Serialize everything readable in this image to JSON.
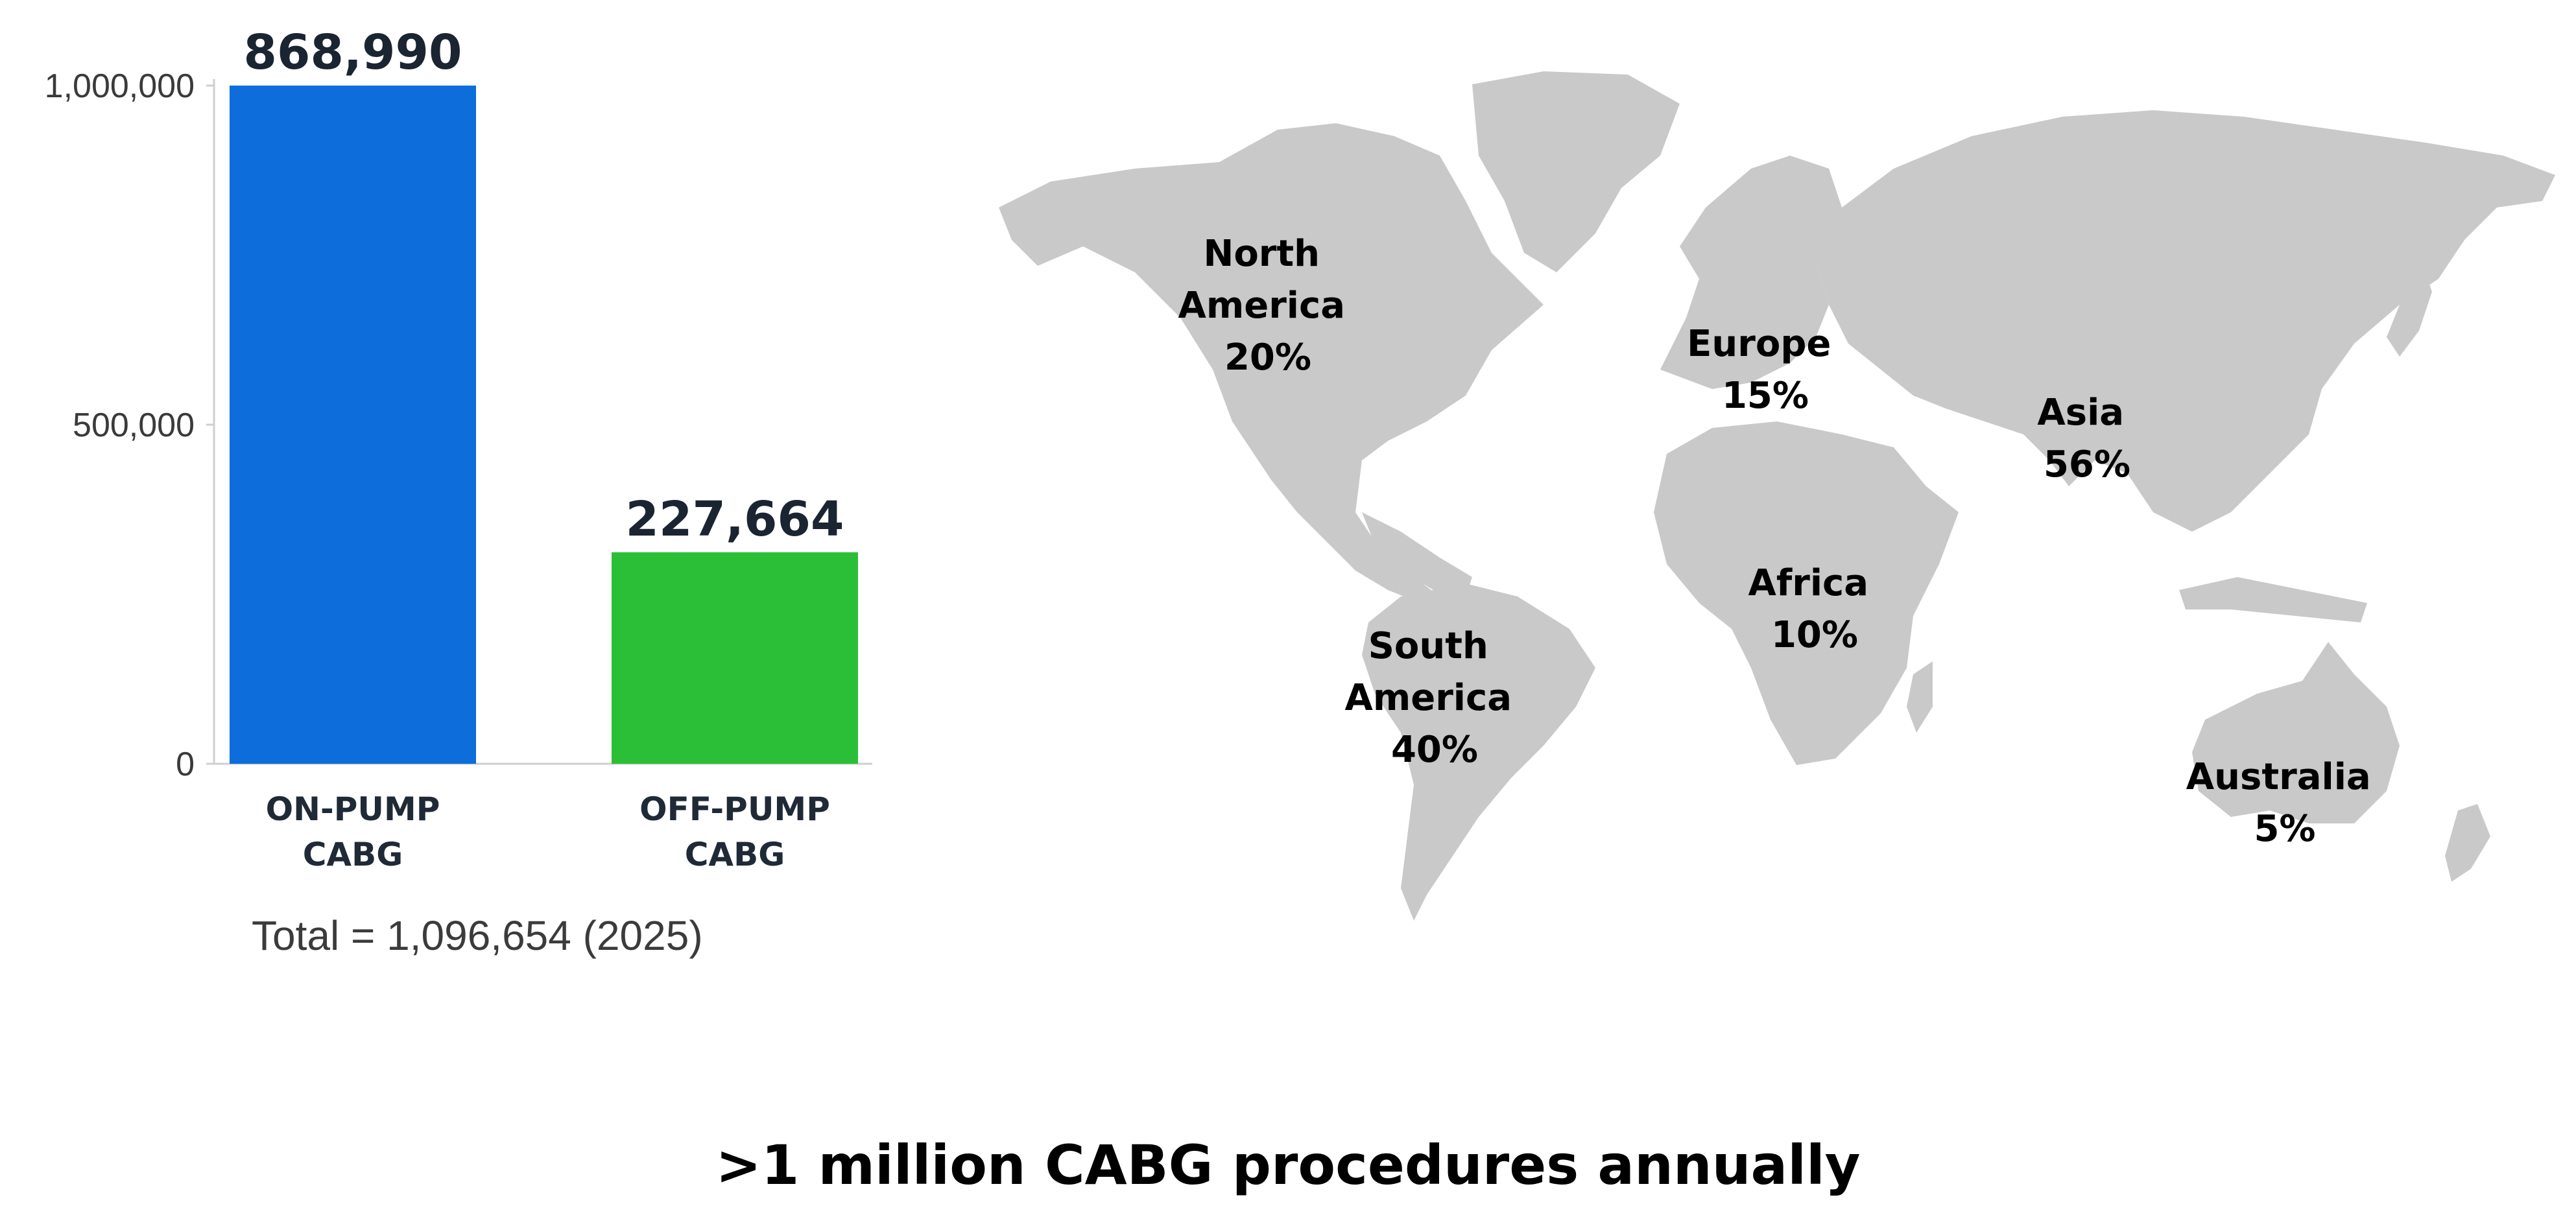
{
  "chart_data": {
    "type": "bar",
    "categories": [
      "ON-PUMP\nCABG",
      "OFF-PUMP\nCABG"
    ],
    "values": [
      868990,
      227664
    ],
    "value_labels": [
      "868,990",
      "227,664"
    ],
    "colors": [
      "#0c6ddb",
      "#2bbf38"
    ],
    "yticks": [
      0,
      500000,
      1000000
    ],
    "ytick_labels": [
      "0",
      "500,000",
      "1,000,000"
    ],
    "ylim": [
      0,
      1000000
    ],
    "grid": false,
    "note": "Total = 1,096,654 (2025)"
  },
  "map": {
    "regions": [
      {
        "name": "North\nAmerica",
        "share": "20%"
      },
      {
        "name": "Europe",
        "share": "15%"
      },
      {
        "name": "Asia",
        "share": "56%"
      },
      {
        "name": "Africa",
        "share": "10%"
      },
      {
        "name": "South\nAmerica",
        "share": "40%"
      },
      {
        "name": "Australia",
        "share": "5%"
      }
    ]
  },
  "headline": ">1 million CABG procedures annually"
}
